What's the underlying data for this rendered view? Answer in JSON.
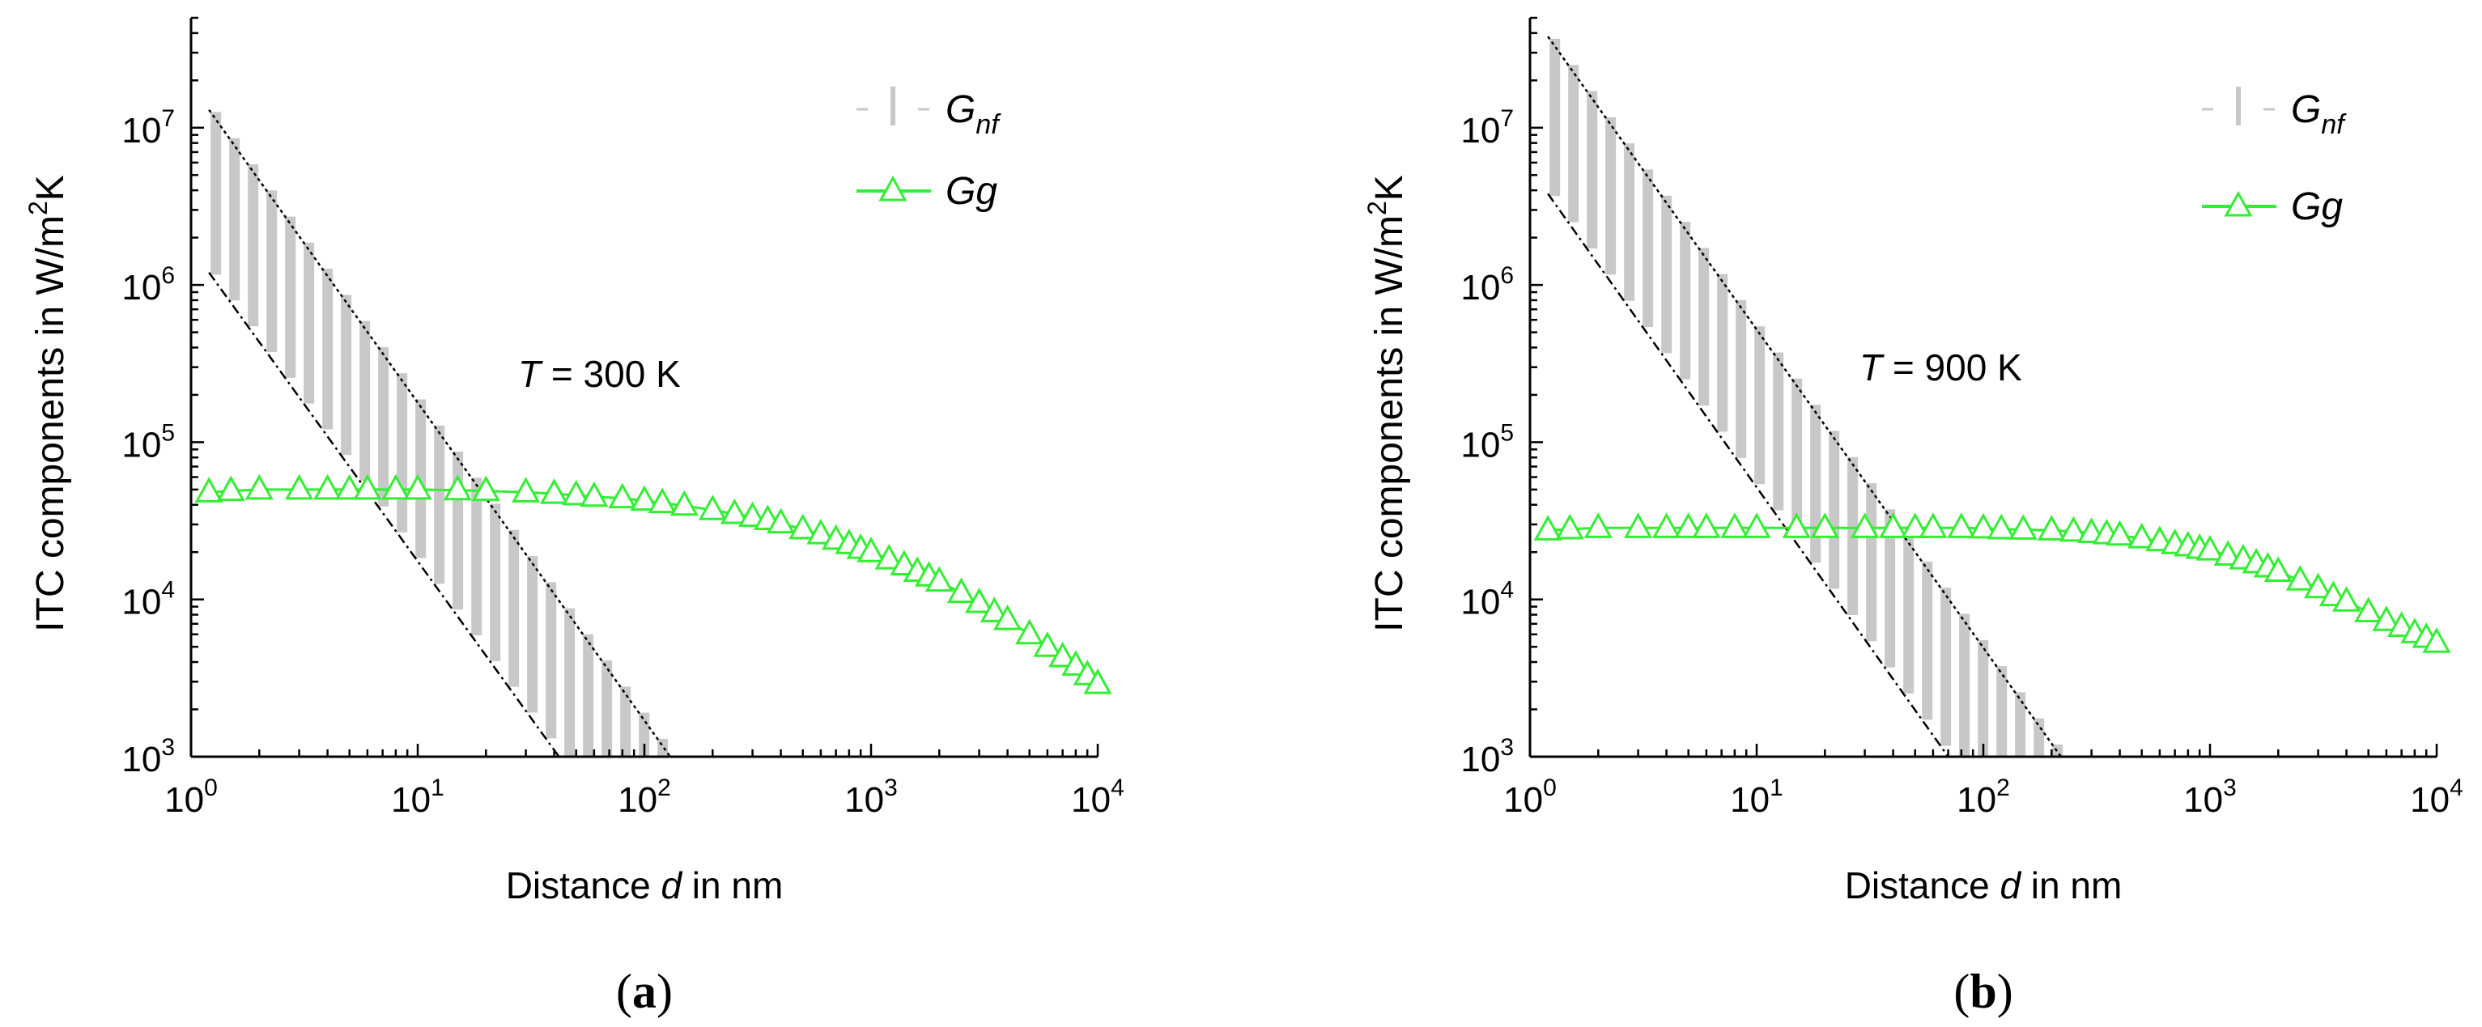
{
  "chart_data": [
    {
      "type": "line",
      "panel_label": "(a)",
      "scale": "log-log",
      "title": "",
      "xlabel": "Distance d in nm",
      "ylabel": "ITC components in W/m²K",
      "xlim": [
        1,
        10000
      ],
      "ylim": [
        1000,
        50000000
      ],
      "x_ticks": [
        1,
        10,
        100,
        1000,
        10000
      ],
      "y_ticks": [
        1000,
        10000,
        100000,
        1000000,
        10000000
      ],
      "annotation": {
        "var": "T",
        "text": " = 300 K"
      },
      "legend": {
        "placement": "top-right",
        "entries": [
          {
            "symbol": "G",
            "sub": "nf",
            "style": "grey-bars"
          },
          {
            "symbol": "Gg",
            "sub": "",
            "style": "green-triangle-line"
          }
        ]
      },
      "series": [
        {
          "name": "G_nf band",
          "kind": "band",
          "color": "#c8c8c8",
          "upper": {
            "x": [
              1.2,
              130
            ],
            "y": [
              13000000,
              1000
            ]
          },
          "lower": {
            "x": [
              1.2,
              42
            ],
            "y": [
              1200000,
              1000
            ]
          }
        },
        {
          "name": "Gg",
          "kind": "line-markers",
          "color": "#33ee33",
          "x": [
            1.2,
            1.5,
            2,
            3,
            4,
            5,
            6,
            8,
            10,
            15,
            20,
            30,
            40,
            50,
            60,
            80,
            100,
            120,
            150,
            200,
            250,
            300,
            350,
            400,
            500,
            600,
            700,
            800,
            900,
            1000,
            1200,
            1400,
            1600,
            1800,
            2000,
            2500,
            3000,
            3500,
            4000,
            5000,
            6000,
            7000,
            8000,
            9000,
            10000
          ],
          "y": [
            48000,
            49000,
            50000,
            50000,
            50000,
            50000,
            50000,
            50000,
            50000,
            49500,
            49000,
            48000,
            47000,
            46000,
            45000,
            44000,
            42500,
            41000,
            39500,
            37000,
            35000,
            33500,
            32000,
            30500,
            28000,
            26000,
            24000,
            22500,
            21000,
            20000,
            18000,
            16500,
            15000,
            14000,
            13000,
            11000,
            9500,
            8300,
            7400,
            6000,
            5000,
            4300,
            3800,
            3300,
            2900
          ]
        }
      ]
    },
    {
      "type": "line",
      "panel_label": "(b)",
      "scale": "log-log",
      "title": "",
      "xlabel": "Distance d in nm",
      "ylabel": "ITC components in W/m²K",
      "xlim": [
        1,
        10000
      ],
      "ylim": [
        1000,
        50000000
      ],
      "x_ticks": [
        1,
        10,
        100,
        1000,
        10000
      ],
      "y_ticks": [
        1000,
        10000,
        100000,
        1000000,
        10000000
      ],
      "annotation": {
        "var": "T",
        "text": " = 900 K"
      },
      "legend": {
        "placement": "top-right",
        "entries": [
          {
            "symbol": "G",
            "sub": "nf",
            "style": "grey-bars"
          },
          {
            "symbol": "Gg",
            "sub": "",
            "style": "green-triangle-line"
          }
        ]
      },
      "series": [
        {
          "name": "G_nf band",
          "kind": "band",
          "color": "#c8c8c8",
          "upper": {
            "x": [
              1.2,
              220
            ],
            "y": [
              38000000,
              1000
            ]
          },
          "lower": {
            "x": [
              1.2,
              70
            ],
            "y": [
              3800000,
              1000
            ]
          }
        },
        {
          "name": "Gg",
          "kind": "line-markers",
          "color": "#33ee33",
          "x": [
            1.2,
            1.5,
            2,
            3,
            4,
            5,
            6,
            8,
            10,
            15,
            20,
            30,
            40,
            50,
            60,
            80,
            100,
            120,
            150,
            200,
            250,
            300,
            350,
            400,
            500,
            600,
            700,
            800,
            900,
            1000,
            1200,
            1400,
            1600,
            1800,
            2000,
            2500,
            3000,
            3500,
            4000,
            5000,
            6000,
            7000,
            8000,
            9000,
            10000
          ],
          "y": [
            27500,
            28000,
            28500,
            28500,
            28500,
            28500,
            28500,
            28500,
            28500,
            28500,
            28500,
            28500,
            28500,
            28500,
            28500,
            28500,
            28300,
            28000,
            27800,
            27500,
            27000,
            26500,
            26000,
            25500,
            24500,
            23500,
            22500,
            21800,
            21000,
            20500,
            19000,
            18000,
            17000,
            16000,
            15000,
            13200,
            11800,
            10500,
            9700,
            8300,
            7300,
            6700,
            6100,
            5700,
            5300
          ]
        }
      ]
    }
  ]
}
